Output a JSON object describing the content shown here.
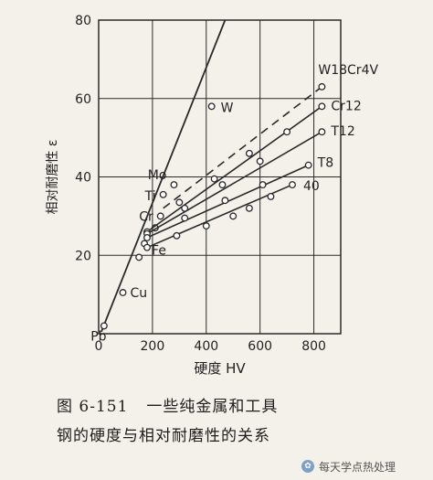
{
  "chart_data": {
    "type": "line",
    "xlabel": "硬度 HV",
    "ylabel": "相对耐磨性 ε",
    "xlim": [
      0,
      900
    ],
    "ylim": [
      0,
      80
    ],
    "xticks": [
      "0",
      "200",
      "400",
      "600",
      "800"
    ],
    "yticks": [
      "20",
      "40",
      "60",
      "80"
    ],
    "grid": true,
    "pure_metals": {
      "name": "",
      "points": [
        {
          "label": "Pb",
          "x": 20,
          "y": 2
        },
        {
          "label": "Cu",
          "x": 90,
          "y": 10.5
        },
        {
          "label": "Fe",
          "x": 170,
          "y": 23
        },
        {
          "label": "Cr",
          "x": 230,
          "y": 30
        },
        {
          "label": "Ti",
          "x": 240,
          "y": 35.5
        },
        {
          "label": "Mo",
          "x": 280,
          "y": 38
        },
        {
          "label": "W",
          "x": 420,
          "y": 58
        }
      ],
      "extra_points": [
        {
          "x": 150,
          "y": 19.5
        },
        {
          "x": 210,
          "y": 27
        }
      ]
    },
    "steels": [
      {
        "label": "W18Cr4V",
        "dashed": true,
        "points": [
          [
            240,
            32
          ],
          [
            360,
            41
          ],
          [
            520,
            48
          ],
          [
            680,
            56
          ],
          [
            830,
            63
          ]
        ]
      },
      {
        "label": "Cr12",
        "dashed": false,
        "points": [
          [
            180,
            26
          ],
          [
            300,
            33.5
          ],
          [
            430,
            39.5
          ],
          [
            560,
            46
          ],
          [
            700,
            51.5
          ],
          [
            830,
            58
          ]
        ]
      },
      {
        "label": "T12",
        "dashed": false,
        "points": [
          [
            180,
            25.5
          ],
          [
            320,
            32
          ],
          [
            460,
            38
          ],
          [
            600,
            44
          ],
          [
            830,
            51.5
          ]
        ]
      },
      {
        "label": "T8",
        "dashed": false,
        "points": [
          [
            180,
            24.5
          ],
          [
            320,
            29.5
          ],
          [
            470,
            34
          ],
          [
            610,
            38
          ],
          [
            780,
            43
          ]
        ]
      },
      {
        "label": "40",
        "dashed": false,
        "points": [
          [
            180,
            22
          ],
          [
            290,
            25
          ],
          [
            400,
            27.5
          ],
          [
            500,
            30
          ],
          [
            560,
            32
          ],
          [
            640,
            35
          ],
          [
            720,
            38
          ]
        ]
      }
    ]
  },
  "caption": {
    "number": "图 6-151",
    "line1": "一些纯金属和工具",
    "line2": "钢的硬度与相对耐磨性的关系"
  },
  "watermark": {
    "icon": "wechat-icon",
    "text": "每天学点热处理"
  }
}
